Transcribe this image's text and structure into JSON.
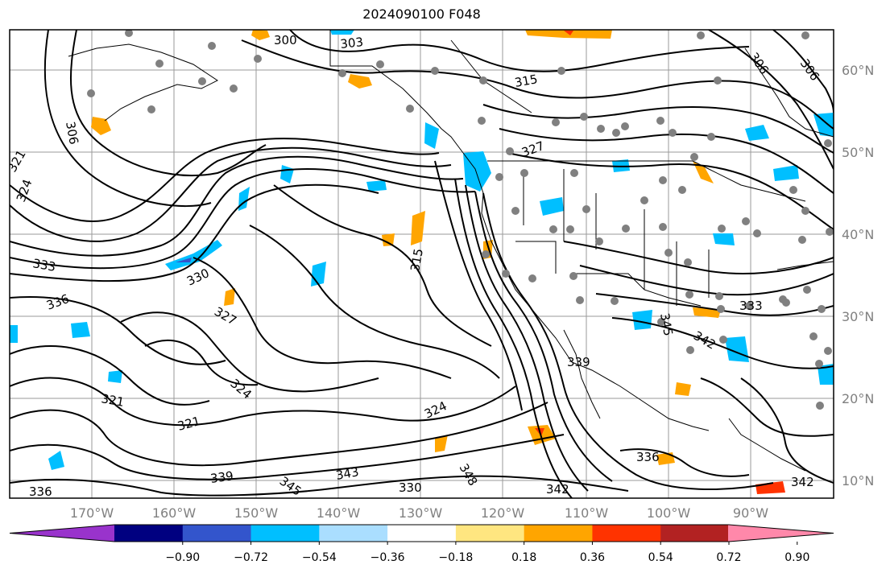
{
  "title": "2024090100 F048",
  "map": {
    "lon_labels": [
      "170°W",
      "160°W",
      "150°W",
      "140°W",
      "130°W",
      "120°W",
      "110°W",
      "100°W",
      "90°W"
    ],
    "lat_labels": [
      "60°N",
      "50°N",
      "40°N",
      "30°N",
      "20°N",
      "10°N"
    ],
    "contour_labels": [
      "300",
      "303",
      "306",
      "306",
      "306",
      "315",
      "315",
      "321",
      "324",
      "327",
      "330",
      "333",
      "333",
      "336",
      "336",
      "339",
      "342",
      "342",
      "324",
      "321",
      "321",
      "324",
      "327",
      "342",
      "345",
      "330",
      "336",
      "339",
      "343",
      "345",
      "348"
    ],
    "contour_color": "#000000",
    "station_color": "#808080",
    "grid_color": "#9a9a9a"
  },
  "colorbar": {
    "tick_labels": [
      "−0.90",
      "−0.72",
      "−0.54",
      "−0.36",
      "−0.18",
      "0.18",
      "0.36",
      "0.54",
      "0.72",
      "0.90"
    ],
    "colors": [
      "#9933cc",
      "#000080",
      "#3355cc",
      "#00bfff",
      "#aadeff",
      "#ffffff",
      "#ffe680",
      "#ffa500",
      "#ff3300",
      "#b22222",
      "#ff88aa"
    ]
  }
}
